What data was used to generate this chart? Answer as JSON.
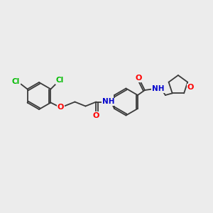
{
  "background_color": "#ececec",
  "bond_color": "#3a3a3a",
  "atom_colors": {
    "O": "#ff0000",
    "N": "#0000cd",
    "Cl": "#00bb00",
    "C": "#3a3a3a"
  },
  "figsize": [
    3.0,
    3.0
  ],
  "dpi": 100,
  "lw": 1.3,
  "font_size": 7.5
}
